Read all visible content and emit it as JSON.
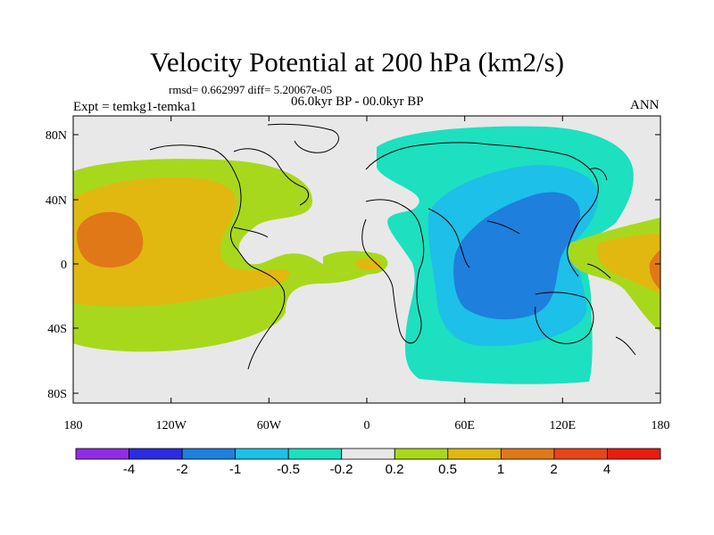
{
  "title": "Velocity Potential at 200 hPa (km2/s)",
  "stats": "rmsd= 0.662997 diff= 5.20067e-05",
  "period": "06.0kyr BP - 00.0kyr BP",
  "experiment": "Expt = temkg1-temka1",
  "season": "ANN",
  "lon_ticks": [
    "180",
    "120W",
    "60W",
    "0",
    "60E",
    "120E",
    "180"
  ],
  "lat_ticks": [
    "80N",
    "40N",
    "0",
    "40S",
    "80S"
  ],
  "colorbar": {
    "labels": [
      "-4",
      "-2",
      "-1",
      "-0.5",
      "-0.2",
      "0.2",
      "0.5",
      "1",
      "2",
      "4"
    ],
    "colors": [
      "#8f2ce6",
      "#2c2ce0",
      "#1f7fdc",
      "#1cc0e8",
      "#1ce0c0",
      "#e8e8e8",
      "#a8d81c",
      "#e0b810",
      "#e07818",
      "#e84418",
      "#e81c10"
    ]
  },
  "map": {
    "background_color": "#e8e8e8",
    "contour_colors": {
      "neg_1": "#1f7fdc",
      "neg_05": "#1cc0e8",
      "neg_02": "#1ce0c0",
      "pos_02": "#a8d81c",
      "pos_05": "#e0b810",
      "pos_1": "#e07818"
    }
  }
}
